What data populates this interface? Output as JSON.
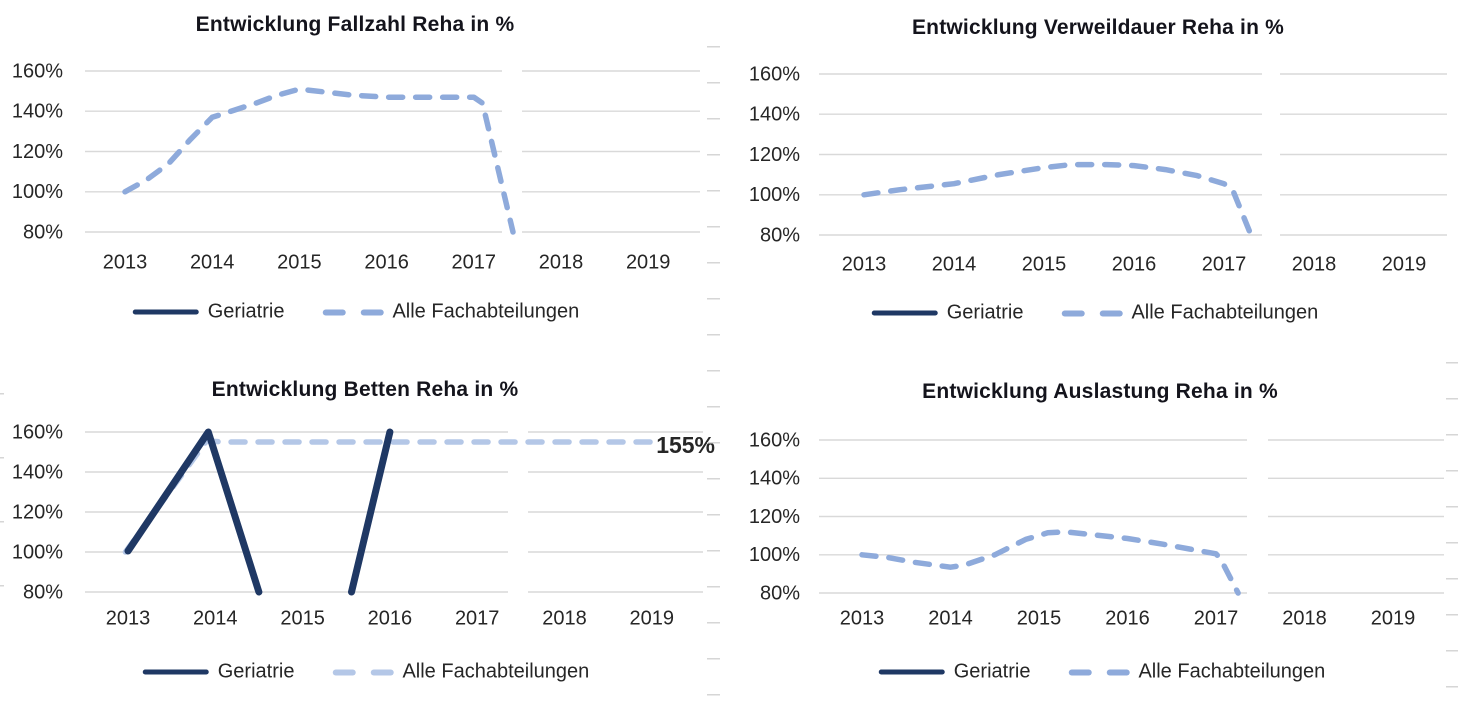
{
  "page": {
    "background": "#FFFFFF"
  },
  "palette": {
    "geriatrie": "#1F3864",
    "alle_fachabteilungen": "#8EAADB",
    "alle_fachabteilungen_light": "#B4C7E7",
    "gridline": "#D9D9D9",
    "text": "#262626",
    "title": "#14141C"
  },
  "chart_data": [
    {
      "id": "fallzahl",
      "type": "line",
      "title": "Entwicklung Fallzahl Reha in %",
      "x_ticks": [
        "2013",
        "2014",
        "2015",
        "2016",
        "2017",
        "2018",
        "2019"
      ],
      "y_ticks": [
        "160%",
        "140%",
        "120%",
        "100%",
        "80%"
      ],
      "xlim": [
        2013,
        2019
      ],
      "ylim": [
        80,
        160
      ],
      "grid": true,
      "legend_position": "bottom",
      "series": [
        {
          "name": "Geriatrie",
          "style": "solid",
          "color": "#1F3864",
          "points": []
        },
        {
          "name": "Alle Fachabteilungen",
          "style": "dashed",
          "color": "#8EAADB",
          "points": [
            [
              2013,
              100
            ],
            [
              2013.25,
              106
            ],
            [
              2013.5,
              114
            ],
            [
              2013.75,
              126
            ],
            [
              2014,
              137
            ],
            [
              2014.5,
              144
            ],
            [
              2014.75,
              148
            ],
            [
              2015,
              151
            ],
            [
              2015.3,
              149.5
            ],
            [
              2015.6,
              148
            ],
            [
              2016,
              147
            ],
            [
              2016.5,
              147
            ],
            [
              2017,
              147
            ],
            [
              2017.1,
              144
            ],
            [
              2017.45,
              80
            ]
          ]
        }
      ]
    },
    {
      "id": "verweildauer",
      "type": "line",
      "title": "Entwicklung Verweildauer Reha in %",
      "x_ticks": [
        "2013",
        "2014",
        "2015",
        "2016",
        "2017",
        "2018",
        "2019"
      ],
      "y_ticks": [
        "160%",
        "140%",
        "120%",
        "100%",
        "80%"
      ],
      "xlim": [
        2013,
        2019
      ],
      "ylim": [
        80,
        160
      ],
      "grid": true,
      "legend_position": "bottom",
      "series": [
        {
          "name": "Geriatrie",
          "style": "solid",
          "color": "#1F3864",
          "points": []
        },
        {
          "name": "Alle Fachabteilungen",
          "style": "dashed",
          "color": "#8EAADB",
          "points": [
            [
              2013,
              100
            ],
            [
              2013.4,
              102.5
            ],
            [
              2014,
              105.5
            ],
            [
              2014.5,
              110
            ],
            [
              2015,
              113.5
            ],
            [
              2015.3,
              115
            ],
            [
              2015.7,
              115
            ],
            [
              2016,
              114.5
            ],
            [
              2016.35,
              112.5
            ],
            [
              2016.7,
              109.5
            ],
            [
              2017,
              105.5
            ],
            [
              2017.1,
              102
            ],
            [
              2017.3,
              80
            ]
          ]
        }
      ]
    },
    {
      "id": "betten",
      "type": "line",
      "title": "Entwicklung Betten Reha in %",
      "x_ticks": [
        "2013",
        "2014",
        "2015",
        "2016",
        "2017",
        "2018",
        "2019"
      ],
      "y_ticks": [
        "160%",
        "140%",
        "120%",
        "100%",
        "80%"
      ],
      "xlim": [
        2013,
        2019
      ],
      "ylim": [
        80,
        160
      ],
      "grid": true,
      "legend_position": "bottom",
      "annotation": {
        "text": "155%",
        "x": 2019.05,
        "y": 155,
        "color": "#8EAADB"
      },
      "series": [
        {
          "name": "Geriatrie",
          "style": "solid",
          "color": "#1F3864",
          "points": [
            [
              2013,
              100.5
            ],
            [
              2013.92,
              160
            ],
            [
              2014.5,
              80
            ],
            null,
            [
              2015.56,
              80
            ],
            [
              2016,
              160
            ]
          ]
        },
        {
          "name": "Alle Fachabteilungen",
          "style": "dashed",
          "color": "#B4C7E7",
          "points": [
            [
              2012.97,
              100
            ],
            [
              2013.9,
              155.5
            ],
            [
              2014.1,
              155
            ],
            [
              2019,
              155
            ]
          ]
        }
      ]
    },
    {
      "id": "auslastung",
      "type": "line",
      "title": "Entwicklung Auslastung Reha in %",
      "x_ticks": [
        "2013",
        "2014",
        "2015",
        "2016",
        "2017",
        "2018",
        "2019"
      ],
      "y_ticks": [
        "160%",
        "140%",
        "120%",
        "100%",
        "80%"
      ],
      "xlim": [
        2013,
        2019
      ],
      "ylim": [
        80,
        160
      ],
      "grid": true,
      "legend_position": "bottom",
      "series": [
        {
          "name": "Geriatrie",
          "style": "solid",
          "color": "#1F3864",
          "points": []
        },
        {
          "name": "Alle Fachabteilungen",
          "style": "dashed",
          "color": "#8EAADB",
          "points": [
            [
              2013,
              100
            ],
            [
              2013.3,
              98.5
            ],
            [
              2013.6,
              96
            ],
            [
              2014,
              93.5
            ],
            [
              2014.15,
              94.5
            ],
            [
              2014.5,
              100
            ],
            [
              2014.85,
              108
            ],
            [
              2015.1,
              111.5
            ],
            [
              2015.3,
              112
            ],
            [
              2015.6,
              110.5
            ],
            [
              2016,
              108.5
            ],
            [
              2016.4,
              105.5
            ],
            [
              2016.7,
              103
            ],
            [
              2017,
              100.5
            ],
            [
              2017.05,
              98
            ],
            [
              2017.25,
              80
            ]
          ]
        }
      ]
    }
  ]
}
